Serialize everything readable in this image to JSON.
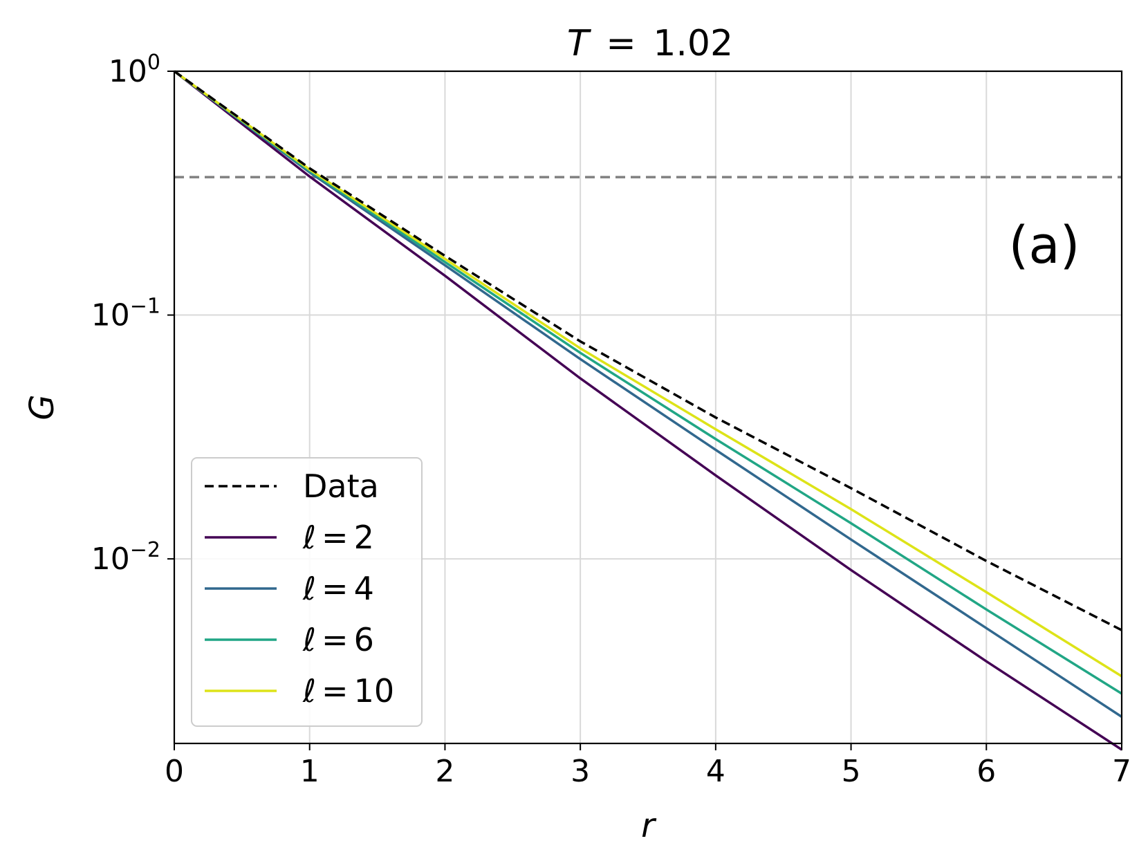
{
  "chart_data": {
    "type": "line",
    "title_var": "T",
    "title_eq": "=",
    "title_val": "1.02",
    "xlabel": "r",
    "ylabel": "G",
    "xlim": [
      0,
      7
    ],
    "ylim": [
      0.00175,
      1.0
    ],
    "yscale": "log",
    "grid": true,
    "legend_placement": "lower-left",
    "annotation": "(a)",
    "x_ticks": [
      "0",
      "1",
      "2",
      "3",
      "4",
      "5",
      "6",
      "7"
    ],
    "y_ticks": [
      {
        "value": 1.0,
        "base": "10",
        "exp": "0"
      },
      {
        "value": 0.1,
        "base": "10",
        "exp": "−1"
      },
      {
        "value": 0.01,
        "base": "10",
        "exp": "−2"
      }
    ],
    "reference_line": {
      "y": 0.3679,
      "color": "#808080",
      "style": "dashed"
    },
    "x": [
      0,
      1,
      2,
      3,
      4,
      5,
      6,
      7
    ],
    "series": [
      {
        "name": "Data",
        "color": "#000000",
        "style": "dashed",
        "values": [
          1.0,
          0.4,
          0.175,
          0.078,
          0.038,
          0.0195,
          0.0098,
          0.0051
        ]
      },
      {
        "name_var": "ℓ",
        "name_eq": "=",
        "name_val": "2",
        "color": "#440154",
        "style": "solid",
        "values": [
          1.0,
          0.37,
          0.145,
          0.055,
          0.022,
          0.009,
          0.0038,
          0.00165
        ]
      },
      {
        "name_var": "ℓ",
        "name_eq": "=",
        "name_val": "4",
        "color": "#31688e",
        "style": "solid",
        "values": [
          1.0,
          0.385,
          0.16,
          0.066,
          0.028,
          0.012,
          0.0052,
          0.00225
        ]
      },
      {
        "name_var": "ℓ",
        "name_eq": "=",
        "name_val": "6",
        "color": "#21a685",
        "style": "solid",
        "values": [
          1.0,
          0.39,
          0.165,
          0.07,
          0.031,
          0.014,
          0.0062,
          0.0028
        ]
      },
      {
        "name_var": "ℓ",
        "name_eq": "=",
        "name_val": "10",
        "color": "#dde318",
        "style": "solid",
        "values": [
          1.0,
          0.395,
          0.17,
          0.073,
          0.034,
          0.016,
          0.0073,
          0.0033
        ]
      }
    ]
  }
}
